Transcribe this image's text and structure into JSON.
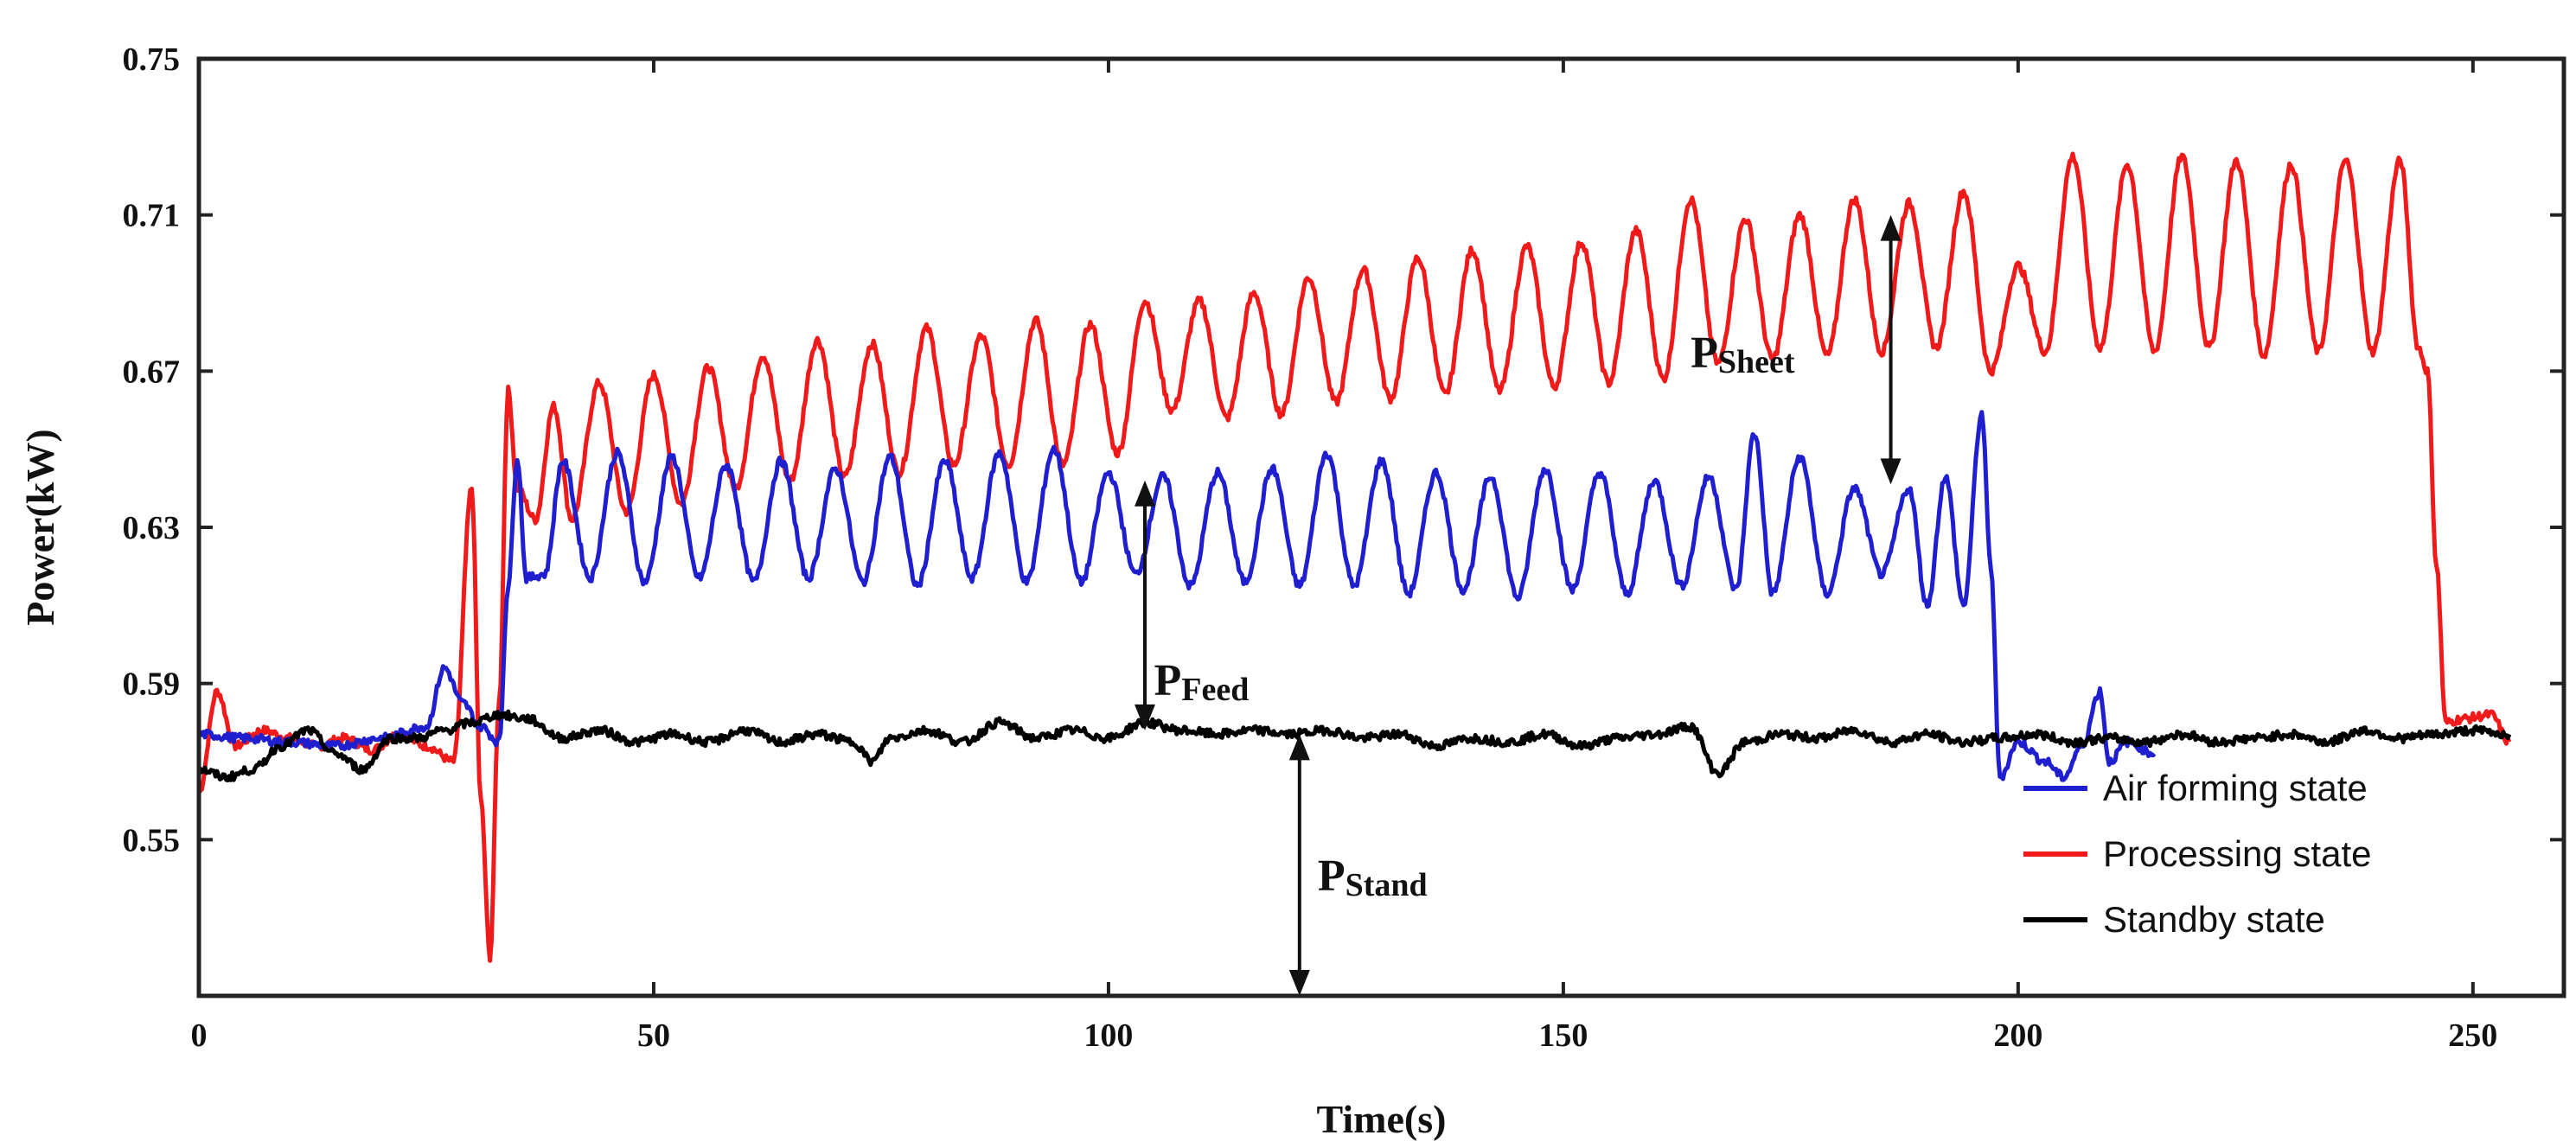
{
  "chart_data": {
    "type": "line",
    "title": "",
    "xlabel": "Time(s)",
    "ylabel": "Power(kW)",
    "xlim": [
      0,
      260
    ],
    "ylim": [
      0.51,
      0.75
    ],
    "xticks": [
      0,
      50,
      100,
      150,
      200,
      250
    ],
    "yticks": [
      0.55,
      0.59,
      0.63,
      0.67,
      0.71,
      0.75
    ],
    "ytick_labels": [
      "0.55",
      "0.59",
      "0.63",
      "0.67",
      "0.71",
      "0.75"
    ],
    "legend_position": "bottom-right",
    "series": [
      {
        "name": "Air forming state",
        "color": "#1f1fd0",
        "x": [
          0,
          5,
          10,
          15,
          20,
          25,
          27,
          29,
          31,
          33,
          34,
          35,
          36,
          38,
          40,
          43,
          46,
          49,
          52,
          55,
          58,
          61,
          64,
          67,
          70,
          73,
          76,
          79,
          82,
          85,
          88,
          91,
          94,
          97,
          100,
          103,
          106,
          109,
          112,
          115,
          118,
          121,
          124,
          127,
          130,
          133,
          136,
          139,
          142,
          145,
          148,
          151,
          154,
          157,
          160,
          163,
          166,
          169,
          171,
          173,
          176,
          179,
          182,
          185,
          188,
          190,
          192,
          194,
          196,
          197,
          198,
          200,
          203,
          205,
          207,
          209,
          210,
          212,
          215
        ],
        "y": [
          0.577,
          0.576,
          0.575,
          0.574,
          0.576,
          0.579,
          0.594,
          0.585,
          0.579,
          0.575,
          0.615,
          0.648,
          0.617,
          0.618,
          0.647,
          0.617,
          0.649,
          0.616,
          0.648,
          0.617,
          0.646,
          0.616,
          0.647,
          0.617,
          0.645,
          0.616,
          0.648,
          0.615,
          0.647,
          0.617,
          0.649,
          0.616,
          0.65,
          0.616,
          0.644,
          0.618,
          0.643,
          0.615,
          0.644,
          0.616,
          0.645,
          0.615,
          0.649,
          0.615,
          0.647,
          0.613,
          0.644,
          0.614,
          0.643,
          0.612,
          0.645,
          0.614,
          0.644,
          0.613,
          0.642,
          0.615,
          0.643,
          0.614,
          0.654,
          0.613,
          0.648,
          0.613,
          0.64,
          0.618,
          0.64,
          0.61,
          0.643,
          0.61,
          0.659,
          0.62,
          0.566,
          0.575,
          0.57,
          0.566,
          0.574,
          0.588,
          0.57,
          0.575,
          0.572
        ]
      },
      {
        "name": "Processing state",
        "color": "#f01a1a",
        "x": [
          0,
          2,
          4,
          7,
          10,
          13,
          16,
          19,
          22,
          25,
          28,
          30,
          31,
          32,
          33,
          34,
          35,
          37,
          39,
          41,
          44,
          47,
          50,
          53,
          56,
          59,
          62,
          65,
          68,
          71,
          74,
          77,
          80,
          83,
          86,
          89,
          92,
          95,
          98,
          101,
          104,
          107,
          110,
          113,
          116,
          119,
          122,
          125,
          128,
          131,
          134,
          137,
          140,
          143,
          146,
          149,
          152,
          155,
          158,
          161,
          164,
          167,
          170,
          173,
          176,
          179,
          182,
          185,
          188,
          191,
          194,
          197,
          200,
          203,
          206,
          209,
          212,
          215,
          218,
          221,
          224,
          227,
          230,
          233,
          236,
          239,
          242,
          244,
          245,
          246,
          247,
          249,
          252,
          254
        ],
        "y": [
          0.562,
          0.588,
          0.574,
          0.578,
          0.576,
          0.574,
          0.576,
          0.573,
          0.577,
          0.574,
          0.57,
          0.64,
          0.56,
          0.52,
          0.585,
          0.665,
          0.64,
          0.632,
          0.661,
          0.632,
          0.667,
          0.634,
          0.669,
          0.636,
          0.671,
          0.64,
          0.674,
          0.642,
          0.678,
          0.643,
          0.677,
          0.644,
          0.681,
          0.646,
          0.679,
          0.646,
          0.683,
          0.646,
          0.682,
          0.649,
          0.688,
          0.66,
          0.688,
          0.658,
          0.69,
          0.659,
          0.694,
          0.662,
          0.696,
          0.663,
          0.699,
          0.664,
          0.701,
          0.665,
          0.702,
          0.666,
          0.703,
          0.667,
          0.706,
          0.668,
          0.714,
          0.672,
          0.709,
          0.673,
          0.71,
          0.674,
          0.714,
          0.675,
          0.713,
          0.676,
          0.716,
          0.67,
          0.697,
          0.675,
          0.725,
          0.676,
          0.723,
          0.675,
          0.725,
          0.676,
          0.724,
          0.674,
          0.723,
          0.675,
          0.724,
          0.675,
          0.724,
          0.676,
          0.67,
          0.62,
          0.58,
          0.581,
          0.582,
          0.575
        ]
      },
      {
        "name": "Standby state",
        "color": "#000000",
        "x": [
          0,
          3,
          6,
          9,
          12,
          15,
          18,
          21,
          24,
          27,
          30,
          33,
          36,
          40,
          44,
          48,
          52,
          56,
          60,
          64,
          68,
          72,
          74,
          76,
          80,
          84,
          88,
          92,
          96,
          100,
          104,
          108,
          112,
          116,
          120,
          124,
          128,
          132,
          136,
          140,
          144,
          148,
          152,
          156,
          160,
          164,
          167,
          170,
          174,
          178,
          182,
          186,
          190,
          194,
          198,
          202,
          206,
          210,
          214,
          218,
          222,
          226,
          230,
          234,
          238,
          242,
          246,
          250,
          254
        ],
        "y": [
          0.568,
          0.566,
          0.568,
          0.574,
          0.578,
          0.572,
          0.568,
          0.576,
          0.576,
          0.578,
          0.58,
          0.582,
          0.581,
          0.576,
          0.578,
          0.575,
          0.577,
          0.575,
          0.578,
          0.575,
          0.577,
          0.575,
          0.57,
          0.576,
          0.578,
          0.575,
          0.58,
          0.576,
          0.578,
          0.576,
          0.58,
          0.578,
          0.577,
          0.578,
          0.577,
          0.578,
          0.576,
          0.577,
          0.574,
          0.576,
          0.575,
          0.577,
          0.574,
          0.576,
          0.577,
          0.579,
          0.567,
          0.575,
          0.577,
          0.576,
          0.578,
          0.575,
          0.577,
          0.575,
          0.576,
          0.577,
          0.575,
          0.576,
          0.575,
          0.577,
          0.575,
          0.576,
          0.577,
          0.575,
          0.578,
          0.576,
          0.577,
          0.578,
          0.577
        ]
      }
    ],
    "annotations": [
      {
        "id": "sheet",
        "main": "P",
        "sub": "Sheet",
        "x": 186,
        "y_from": 0.71,
        "y_to": 0.641,
        "label_x": 164,
        "label_y": 0.671
      },
      {
        "id": "feed",
        "main": "P",
        "sub": "Feed",
        "x": 104,
        "y_from": 0.642,
        "y_to": 0.578,
        "label_x": 105,
        "label_y": 0.587
      },
      {
        "id": "stand",
        "main": "P",
        "sub": "Stand",
        "x": 121,
        "y_from": 0.577,
        "y_to": 0.51,
        "label_x": 123,
        "label_y": 0.537
      }
    ]
  }
}
